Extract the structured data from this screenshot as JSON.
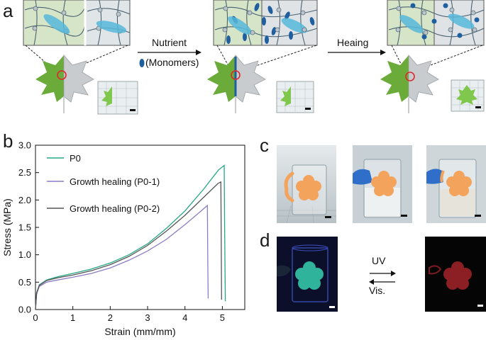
{
  "panels": {
    "a": "a",
    "b": "b",
    "c": "c",
    "d": "d"
  },
  "panel_a": {
    "arrow1_label": "Nutrient",
    "monomer_label": "(Monomers)",
    "arrow2_label": "Heaing"
  },
  "panel_d": {
    "uv_label": "UV",
    "vis_label": "Vis."
  },
  "colors": {
    "leaf_green": "#6aab3a",
    "leaf_grey": "#c9ccce",
    "hydrogel_green": "#d7e6c8",
    "hydrogel_grey": "#dfe3e6",
    "monomer_blue": "#1f5fa0",
    "p0_line": "#22a884",
    "p01_line": "#8e7cc3",
    "p02_line": "#555555",
    "flower_orange": "#f3a35b",
    "flower_cyan": "#2fb39a",
    "flower_red": "#8b1f24"
  },
  "chart_data": {
    "type": "line",
    "xlabel": "Strain (mm/mm)",
    "ylabel": "Stress (MPa)",
    "xlim": [
      0,
      5.6
    ],
    "ylim": [
      0,
      3.0
    ],
    "xticks": [
      "0",
      "1",
      "2",
      "3",
      "4",
      "5"
    ],
    "yticks": [
      "0.0",
      "0.5",
      "1.0",
      "1.5",
      "2.0",
      "2.5",
      "3.0"
    ],
    "series": [
      {
        "name": "P0",
        "x": [
          0,
          0.03,
          0.1,
          0.3,
          0.6,
          1.0,
          1.5,
          2.0,
          2.5,
          3.0,
          3.5,
          4.0,
          4.5,
          4.9,
          5.05,
          5.06,
          5.08
        ],
        "y": [
          0,
          0.3,
          0.45,
          0.54,
          0.6,
          0.66,
          0.74,
          0.85,
          1.0,
          1.2,
          1.48,
          1.8,
          2.2,
          2.55,
          2.63,
          1.5,
          0.15
        ]
      },
      {
        "name": "Growth healing (P0-1)",
        "x": [
          0,
          0.03,
          0.1,
          0.3,
          0.6,
          1.0,
          1.5,
          2.0,
          2.5,
          3.0,
          3.5,
          4.0,
          4.4,
          4.6,
          4.61,
          4.62
        ],
        "y": [
          0,
          0.28,
          0.42,
          0.5,
          0.54,
          0.59,
          0.66,
          0.76,
          0.9,
          1.07,
          1.28,
          1.55,
          1.78,
          1.9,
          1.0,
          0.2
        ]
      },
      {
        "name": "Growth healing (P0-2)",
        "x": [
          0,
          0.03,
          0.1,
          0.3,
          0.6,
          1.0,
          1.5,
          2.0,
          2.5,
          3.0,
          3.5,
          4.0,
          4.5,
          4.88,
          4.96,
          4.97,
          4.98
        ],
        "y": [
          0,
          0.3,
          0.44,
          0.53,
          0.58,
          0.63,
          0.71,
          0.82,
          0.97,
          1.17,
          1.43,
          1.72,
          2.05,
          2.3,
          2.33,
          1.3,
          0.18
        ]
      }
    ]
  }
}
